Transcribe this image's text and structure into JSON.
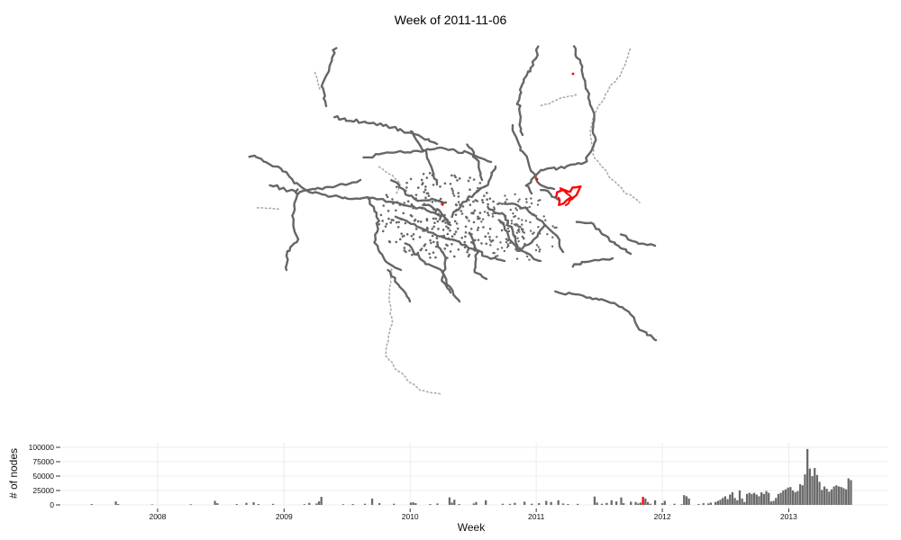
{
  "title": "Week of 2011-11-06",
  "colors": {
    "track": "#666666",
    "track_light": "#aaaaaa",
    "highlight": "#ff0000",
    "bar": "#6a6a6a",
    "grid": "#ececec"
  },
  "chart_data": {
    "type": "bar",
    "xlabel": "Week",
    "ylabel": "# of nodes",
    "ylim": [
      0,
      100000
    ],
    "yticks": [
      0,
      25000,
      50000,
      75000,
      100000
    ],
    "ytick_labels": [
      "0",
      "25000",
      "50000",
      "75000",
      "100000"
    ],
    "xticks": [
      "2008",
      "2009",
      "2010",
      "2011",
      "2012",
      "2013"
    ],
    "highlight_week": "2011-11-06",
    "grid": true,
    "series": [
      {
        "values": [
          [
            "2007-06-24",
            1500
          ],
          [
            "2007-09-02",
            6000
          ],
          [
            "2007-09-09",
            1500
          ],
          [
            "2007-12-16",
            800
          ],
          [
            "2008-04-06",
            1200
          ],
          [
            "2008-06-15",
            7000
          ],
          [
            "2008-06-22",
            3000
          ],
          [
            "2008-08-17",
            1500
          ],
          [
            "2008-09-14",
            3500
          ],
          [
            "2008-10-05",
            4500
          ],
          [
            "2008-10-19",
            1500
          ],
          [
            "2008-11-30",
            1800
          ],
          [
            "2009-03-01",
            1200
          ],
          [
            "2009-03-15",
            3500
          ],
          [
            "2009-04-05",
            2500
          ],
          [
            "2009-04-12",
            6000
          ],
          [
            "2009-04-19",
            14000
          ],
          [
            "2009-06-21",
            1200
          ],
          [
            "2009-07-19",
            1500
          ],
          [
            "2009-08-23",
            2000
          ],
          [
            "2009-09-13",
            11000
          ],
          [
            "2009-10-04",
            3000
          ],
          [
            "2009-11-15",
            2000
          ],
          [
            "2010-01-03",
            4000
          ],
          [
            "2010-01-10",
            4500
          ],
          [
            "2010-01-17",
            3000
          ],
          [
            "2010-02-28",
            1500
          ],
          [
            "2010-03-21",
            2500
          ],
          [
            "2010-04-25",
            13000
          ],
          [
            "2010-05-02",
            4000
          ],
          [
            "2010-05-09",
            9000
          ],
          [
            "2010-05-23",
            1500
          ],
          [
            "2010-07-04",
            2500
          ],
          [
            "2010-07-11",
            5000
          ],
          [
            "2010-08-08",
            8000
          ],
          [
            "2010-09-26",
            2000
          ],
          [
            "2010-10-17",
            1800
          ],
          [
            "2010-10-31",
            3500
          ],
          [
            "2010-11-28",
            5500
          ],
          [
            "2010-12-19",
            2000
          ],
          [
            "2011-01-09",
            3000
          ],
          [
            "2011-01-30",
            7000
          ],
          [
            "2011-02-13",
            5000
          ],
          [
            "2011-03-06",
            8000
          ],
          [
            "2011-03-20",
            2500
          ],
          [
            "2011-04-03",
            1500
          ],
          [
            "2011-05-01",
            1800
          ],
          [
            "2011-06-19",
            14500
          ],
          [
            "2011-06-26",
            4000
          ],
          [
            "2011-07-10",
            2000
          ],
          [
            "2011-07-24",
            3500
          ],
          [
            "2011-08-07",
            8000
          ],
          [
            "2011-08-21",
            6000
          ],
          [
            "2011-09-04",
            13000
          ],
          [
            "2011-09-11",
            3000
          ],
          [
            "2011-10-02",
            5500
          ],
          [
            "2011-10-16",
            5000
          ],
          [
            "2011-10-23",
            2500
          ],
          [
            "2011-10-30",
            4000
          ],
          [
            "2011-11-06",
            14000
          ],
          [
            "2011-11-13",
            11000
          ],
          [
            "2011-11-20",
            5000
          ],
          [
            "2011-11-27",
            2000
          ],
          [
            "2011-12-11",
            8000
          ],
          [
            "2012-01-01",
            3000
          ],
          [
            "2012-01-08",
            7000
          ],
          [
            "2012-02-05",
            2000
          ],
          [
            "2012-02-26",
            1200
          ],
          [
            "2012-03-04",
            17000
          ],
          [
            "2012-03-11",
            15000
          ],
          [
            "2012-03-18",
            11000
          ],
          [
            "2012-04-15",
            1500
          ],
          [
            "2012-04-29",
            3000
          ],
          [
            "2012-05-13",
            2500
          ],
          [
            "2012-05-20",
            4000
          ],
          [
            "2012-06-03",
            5000
          ],
          [
            "2012-06-10",
            7000
          ],
          [
            "2012-06-17",
            9000
          ],
          [
            "2012-06-24",
            12000
          ],
          [
            "2012-07-01",
            15000
          ],
          [
            "2012-07-08",
            10000
          ],
          [
            "2012-07-15",
            18000
          ],
          [
            "2012-07-22",
            22000
          ],
          [
            "2012-07-29",
            12000
          ],
          [
            "2012-08-05",
            8000
          ],
          [
            "2012-08-12",
            25000
          ],
          [
            "2012-08-19",
            11000
          ],
          [
            "2012-08-26",
            5000
          ],
          [
            "2012-09-02",
            19000
          ],
          [
            "2012-09-09",
            21000
          ],
          [
            "2012-09-16",
            19000
          ],
          [
            "2012-09-23",
            21000
          ],
          [
            "2012-09-30",
            18000
          ],
          [
            "2012-10-07",
            15000
          ],
          [
            "2012-10-14",
            22000
          ],
          [
            "2012-10-21",
            19000
          ],
          [
            "2012-10-28",
            24000
          ],
          [
            "2012-11-04",
            21000
          ],
          [
            "2012-11-11",
            6000
          ],
          [
            "2012-11-18",
            7000
          ],
          [
            "2012-11-25",
            12000
          ],
          [
            "2012-12-02",
            19000
          ],
          [
            "2012-12-09",
            21000
          ],
          [
            "2012-12-16",
            25000
          ],
          [
            "2012-12-23",
            27000
          ],
          [
            "2012-12-30",
            30000
          ],
          [
            "2013-01-06",
            31000
          ],
          [
            "2013-01-13",
            25000
          ],
          [
            "2013-01-20",
            22000
          ],
          [
            "2013-01-27",
            24000
          ],
          [
            "2013-02-03",
            36000
          ],
          [
            "2013-02-10",
            34000
          ],
          [
            "2013-02-17",
            53000
          ],
          [
            "2013-02-24",
            97000
          ],
          [
            "2013-03-03",
            63000
          ],
          [
            "2013-03-10",
            50000
          ],
          [
            "2013-03-17",
            64000
          ],
          [
            "2013-03-24",
            52000
          ],
          [
            "2013-03-31",
            40000
          ],
          [
            "2013-04-07",
            26000
          ],
          [
            "2013-04-14",
            32000
          ],
          [
            "2013-04-21",
            28000
          ],
          [
            "2013-04-28",
            23000
          ],
          [
            "2013-05-05",
            27000
          ],
          [
            "2013-05-12",
            32000
          ],
          [
            "2013-05-19",
            34000
          ],
          [
            "2013-05-26",
            32000
          ],
          [
            "2013-06-02",
            31000
          ],
          [
            "2013-06-09",
            29000
          ],
          [
            "2013-06-16",
            27000
          ],
          [
            "2013-06-23",
            46000
          ],
          [
            "2013-06-30",
            43000
          ]
        ]
      }
    ]
  }
}
